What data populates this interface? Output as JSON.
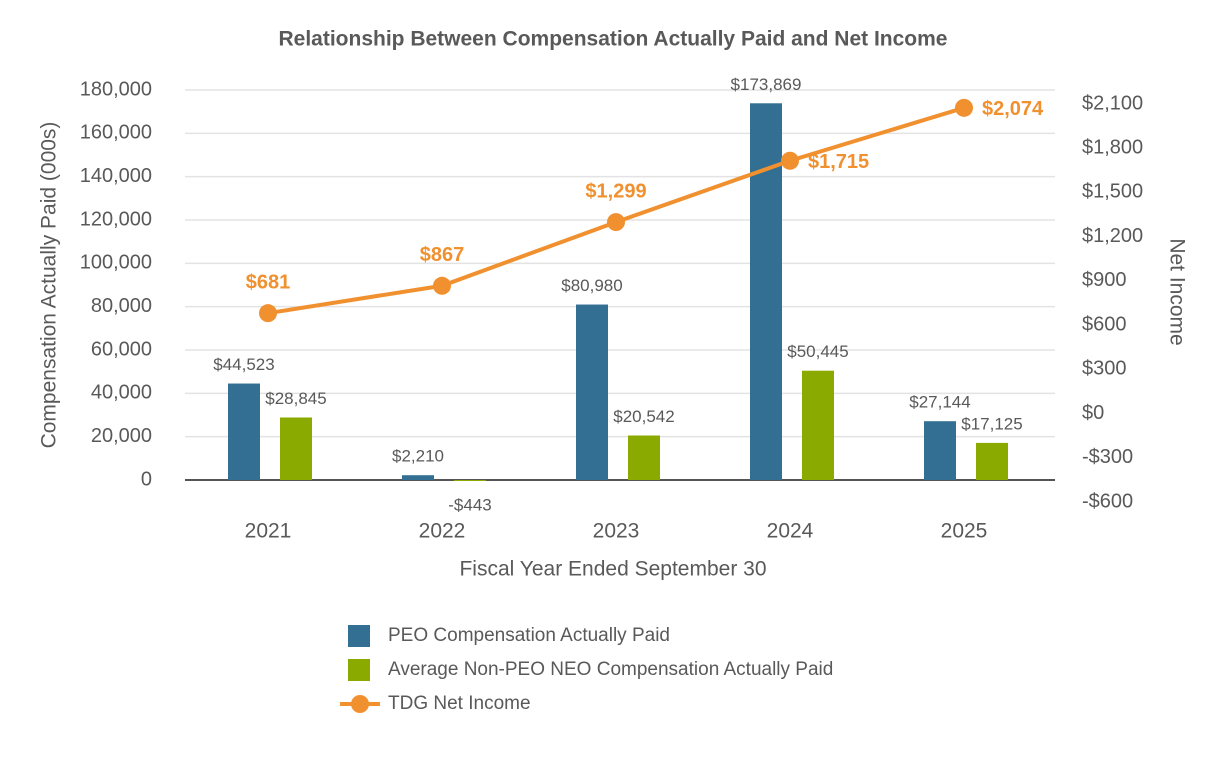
{
  "chart_data": {
    "type": "bar_line",
    "title": "Relationship Between Compensation Actually Paid and Net Income",
    "x_label": "Fiscal Year Ended September 30",
    "y_label": "Compensation Actually Paid (000s)",
    "y2_label": "Net Income",
    "categories": [
      "2021",
      "2022",
      "2023",
      "2024",
      "2025"
    ],
    "series": [
      {
        "name": "PEO Compensation Actually Paid",
        "type": "bar",
        "color": "#336f92",
        "values": [
          44523,
          2210,
          80980,
          173869,
          27144
        ],
        "value_labels": [
          "$44,523",
          "$2,210",
          "$80,980",
          "$173,869",
          "$27,144"
        ]
      },
      {
        "name": "Average Non-PEO NEO Compensation Actually Paid",
        "type": "bar",
        "color": "#8aaa00",
        "values": [
          28845,
          -443,
          20542,
          50445,
          17125
        ],
        "value_labels": [
          "$28,845",
          "-$443",
          "$20,542",
          "$50,445",
          "$17,125"
        ]
      },
      {
        "name": "TDG Net Income",
        "type": "line",
        "axis": "y2",
        "color": "#f0902f",
        "values": [
          681,
          867,
          1299,
          1715,
          2074
        ],
        "value_labels": [
          "$681",
          "$867",
          "$1,299",
          "$1,715",
          "$2,074"
        ]
      }
    ],
    "ylim": [
      0,
      180000
    ],
    "yticks": [
      0,
      {
        "value": 20000,
        "label": "20,000"
      },
      {
        "value": 40000,
        "label": "40,000"
      },
      {
        "value": 60000,
        "label": "60,000"
      },
      {
        "value": 80000,
        "label": "80,000"
      },
      {
        "value": 100000,
        "label": "100,000"
      },
      {
        "value": 120000,
        "label": "120,000"
      },
      {
        "value": 140000,
        "label": "140,000"
      },
      {
        "value": 160000,
        "label": "160,000"
      },
      {
        "value": 180000,
        "label": "180,000"
      }
    ],
    "y2lim": [
      -600,
      2100
    ],
    "y2ticks": [
      {
        "value": -600,
        "label": "-$600"
      },
      {
        "value": -300,
        "label": "-$300"
      },
      {
        "value": 0,
        "label": "$0"
      },
      {
        "value": 300,
        "label": "$300"
      },
      {
        "value": 600,
        "label": "$600"
      },
      {
        "value": 900,
        "label": "$900"
      },
      {
        "value": 1200,
        "label": "$1,200"
      },
      {
        "value": 1500,
        "label": "$1,500"
      },
      {
        "value": 1800,
        "label": "$1,800"
      },
      {
        "value": 2100,
        "label": "$2,100"
      }
    ],
    "grid": true,
    "legend": "bottom"
  }
}
